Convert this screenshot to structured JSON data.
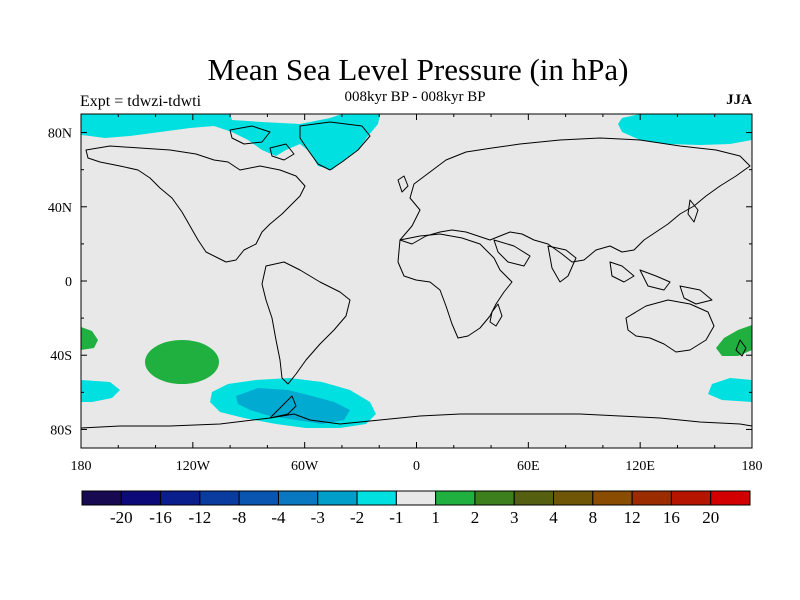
{
  "title": "Mean Sea Level Pressure (in hPa)",
  "subtitle": "008kyr BP - 008kyr BP",
  "experiment": "Expt = tdwzi-tdwti",
  "season": "JJA",
  "map": {
    "projection": "cylindrical-equidistant",
    "lon_range": [
      -180,
      180
    ],
    "lat_range": [
      -90,
      90
    ],
    "background_color": "#e8e8e8",
    "x_ticks": [
      {
        "lon": -180,
        "label": "180"
      },
      {
        "lon": -120,
        "label": "120W"
      },
      {
        "lon": -60,
        "label": "60W"
      },
      {
        "lon": 0,
        "label": "0"
      },
      {
        "lon": 60,
        "label": "60E"
      },
      {
        "lon": 120,
        "label": "120E"
      },
      {
        "lon": 180,
        "label": "180"
      }
    ],
    "y_ticks": [
      {
        "lat": 80,
        "label": "80N"
      },
      {
        "lat": 40,
        "label": "40N"
      },
      {
        "lat": 0,
        "label": "0"
      },
      {
        "lat": -40,
        "label": "40S"
      },
      {
        "lat": -80,
        "label": "80S"
      }
    ],
    "anomaly_regions": [
      {
        "name": "arctic-north-atlantic-low",
        "level": "-2",
        "color": "#00e0e0"
      },
      {
        "name": "north-pacific-arctic-low",
        "level": "-2",
        "color": "#00e0e0"
      },
      {
        "name": "southern-ocean-drake-low",
        "level": "-2",
        "color": "#00e0e0"
      },
      {
        "name": "southern-ocean-drake-core",
        "level": "-3",
        "color": "#00aad0"
      },
      {
        "name": "south-pacific-high",
        "level": "2",
        "color": "#20b040"
      },
      {
        "name": "tasman-high",
        "level": "2",
        "color": "#20b040"
      },
      {
        "name": "dateline-south-high",
        "level": "2",
        "color": "#20b040"
      }
    ]
  },
  "colorbar": {
    "colors": [
      "#170a50",
      "#0c0a78",
      "#0a1e8c",
      "#0a3ca0",
      "#0a55b0",
      "#0a78c0",
      "#009ec8",
      "#00e0e0",
      "#e8e8e8",
      "#20b040",
      "#3c7f1c",
      "#546010",
      "#6e5606",
      "#8a4c00",
      "#9a2c00",
      "#b41400",
      "#d20000"
    ],
    "labels": [
      "-20",
      "-16",
      "-12",
      "-8",
      "-4",
      "-3",
      "-2",
      "-1",
      "1",
      "2",
      "3",
      "4",
      "8",
      "12",
      "16",
      "20"
    ]
  }
}
